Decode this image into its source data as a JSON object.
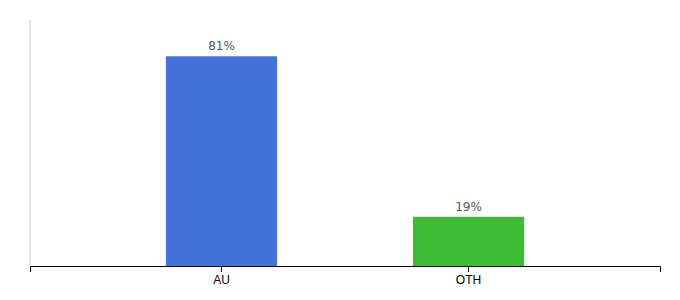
{
  "chart_data": {
    "type": "bar",
    "categories": [
      "AU",
      "OTH"
    ],
    "values": [
      81,
      19
    ],
    "value_labels": [
      "81%",
      "19%"
    ],
    "colors": [
      "#4472DB",
      "#3DBB35"
    ],
    "ylim": [
      0,
      95
    ],
    "data_labels": true,
    "tick_labels": "x",
    "grid": false
  }
}
